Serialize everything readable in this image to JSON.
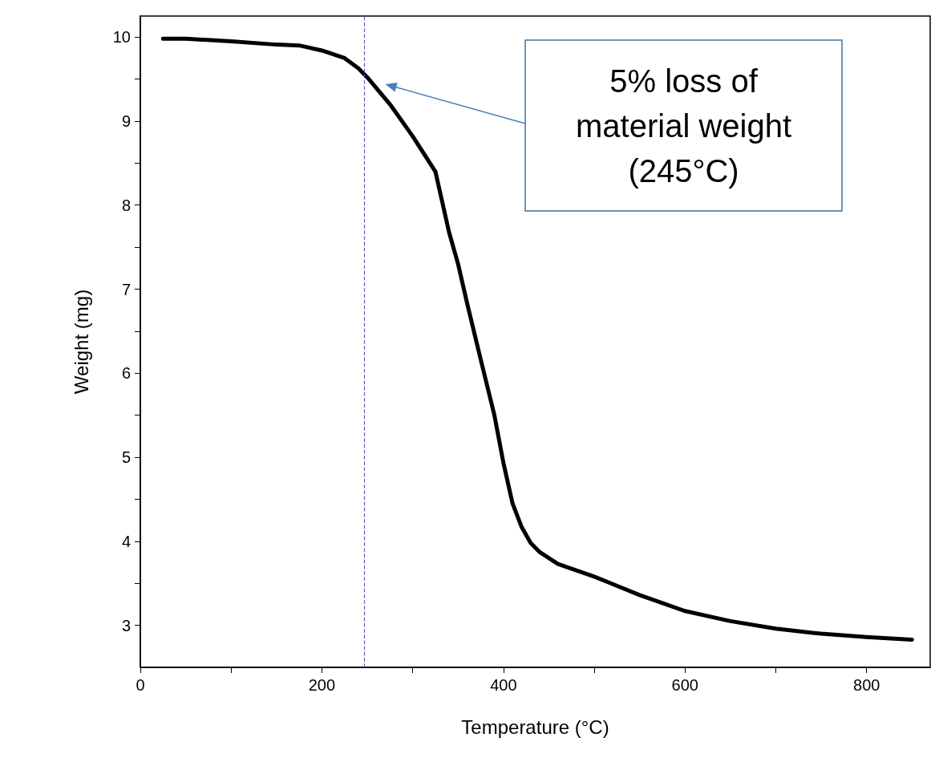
{
  "chart_data": {
    "type": "line",
    "xlabel": "Temperature (°C)",
    "ylabel": "Weight (mg)",
    "xlim": [
      0,
      870
    ],
    "ylim": [
      2.5,
      10.25
    ],
    "xticks": [
      0,
      {
        "value": 100,
        "label": null
      },
      200,
      {
        "value": 300,
        "label": null
      },
      400,
      {
        "value": 500,
        "label": null
      },
      600,
      {
        "value": 700,
        "label": null
      },
      800
    ],
    "yticks": [
      3,
      {
        "value": 3.5,
        "label": null
      },
      4,
      {
        "value": 4.5,
        "label": null
      },
      5,
      {
        "value": 5.5,
        "label": null
      },
      6,
      {
        "value": 6.5,
        "label": null
      },
      7,
      {
        "value": 7.5,
        "label": null
      },
      8,
      {
        "value": 8.5,
        "label": null
      },
      9,
      {
        "value": 9.5,
        "label": null
      },
      10
    ],
    "grid": false,
    "series": [
      {
        "color": "#000000",
        "x": [
          25,
          50,
          100,
          150,
          175,
          200,
          225,
          240,
          250,
          275,
          300,
          325,
          340,
          350,
          360,
          375,
          390,
          400,
          410,
          420,
          430,
          440,
          460,
          500,
          550,
          600,
          650,
          700,
          750,
          800,
          850
        ],
        "values": [
          9.98,
          9.98,
          9.95,
          9.91,
          9.9,
          9.84,
          9.75,
          9.63,
          9.52,
          9.2,
          8.82,
          8.4,
          7.68,
          7.3,
          6.83,
          6.16,
          5.5,
          4.93,
          4.45,
          4.17,
          3.98,
          3.87,
          3.73,
          3.58,
          3.36,
          3.17,
          3.05,
          2.96,
          2.9,
          2.86,
          2.83
        ]
      }
    ],
    "ref_lines": [
      {
        "axis": "x",
        "value": 247,
        "color": "#5b5bc8",
        "line_style": "dashed"
      }
    ],
    "annotations": [
      "5% loss of\nmaterial weight\n(245°C)"
    ]
  }
}
